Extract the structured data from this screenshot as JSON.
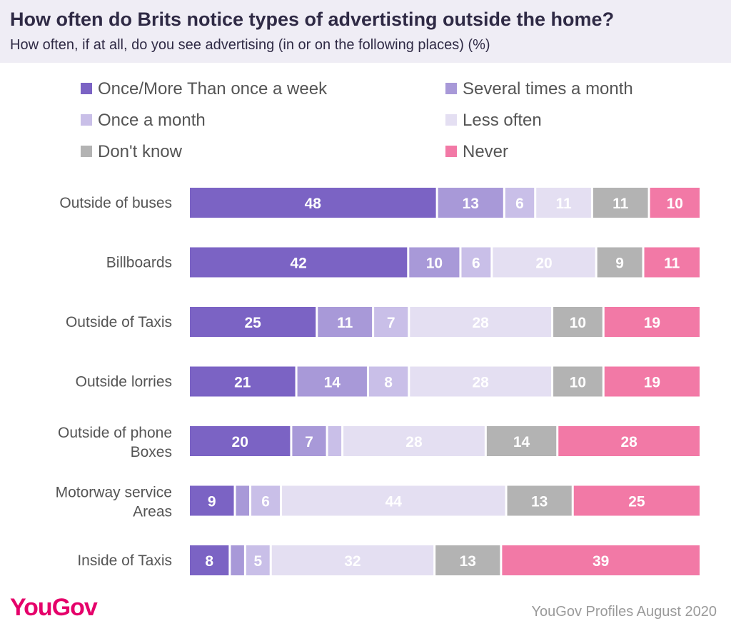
{
  "header": {
    "title": "How often do Brits notice types of advertisting outside the home?",
    "subtitle": "How often, if at all, do you see advertising (in or on the following places) (%)"
  },
  "footer": {
    "logo_text": "YouGov",
    "source": "YouGov Profiles August 2020"
  },
  "colors": {
    "header_bg": "#efedf5",
    "brand": "#e5006a"
  },
  "chart_data": {
    "type": "bar",
    "orientation": "horizontal",
    "stacked": true,
    "title": "How often do Brits notice types of advertisting outside the home?",
    "subtitle": "How often, if at all, do you see advertising (in or on the following places) (%)",
    "xlim": [
      0,
      100
    ],
    "grid": false,
    "legend_position": "top",
    "categories": [
      "Outside of buses",
      "Billboards",
      "Outside of Taxis",
      "Outside lorries",
      "Outside of phone Boxes",
      "Motorway service Areas",
      "Inside of Taxis"
    ],
    "series": [
      {
        "name": "Once/More Than once a week",
        "color": "#7b63c4",
        "label_color": "#ffffff",
        "values": [
          48,
          42,
          25,
          21,
          20,
          9,
          8
        ]
      },
      {
        "name": "Several times a month",
        "color": "#a899d8",
        "label_color": "#ffffff",
        "values": [
          13,
          10,
          11,
          14,
          7,
          3,
          3
        ]
      },
      {
        "name": "Once a month",
        "color": "#c9bfe8",
        "label_color": "#ffffff",
        "values": [
          6,
          6,
          7,
          8,
          3,
          6,
          5
        ]
      },
      {
        "name": "Less often",
        "color": "#e4dff2",
        "label_color": "#ffffff",
        "values": [
          11,
          20,
          28,
          28,
          28,
          44,
          32
        ]
      },
      {
        "name": "Don't know",
        "color": "#b3b3b3",
        "label_color": "#ffffff",
        "values": [
          11,
          9,
          10,
          10,
          14,
          13,
          13
        ]
      },
      {
        "name": "Never",
        "color": "#f279a6",
        "label_color": "#ffffff",
        "values": [
          10,
          11,
          19,
          19,
          28,
          25,
          39
        ]
      }
    ]
  }
}
